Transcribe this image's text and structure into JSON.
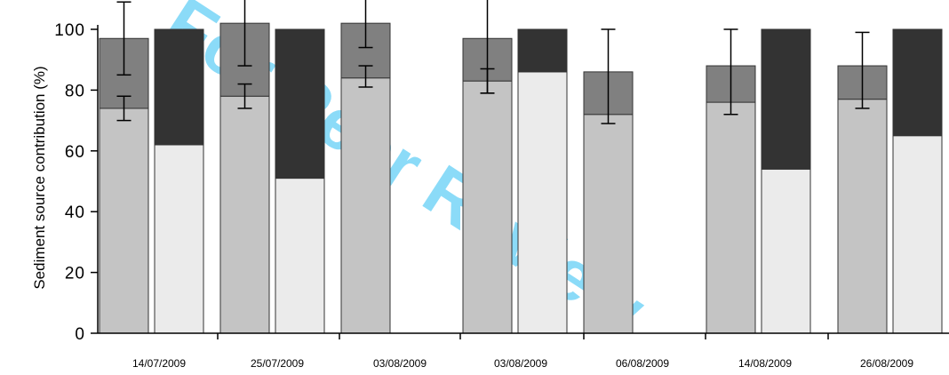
{
  "chart_data": {
    "type": "bar",
    "stacked": true,
    "ylabel": "Sediment source contribution (%)",
    "xlabel": "",
    "ylim": [
      0,
      100
    ],
    "yticks": [
      0,
      20,
      40,
      60,
      80,
      100
    ],
    "categories": [
      "14/07/2009",
      "25/07/2009",
      "03/08/2009",
      "03/08/2009",
      "06/08/2009",
      "14/08/2009",
      "26/08/2009"
    ],
    "groups": [
      {
        "category": "14/07/2009",
        "bar1": {
          "bottom": 74,
          "top": 97,
          "err_bottom": [
            70,
            78
          ],
          "err_top": [
            85,
            109
          ]
        },
        "bar2": {
          "bottom": 62,
          "top": 100
        }
      },
      {
        "category": "25/07/2009",
        "bar1": {
          "bottom": 78,
          "top": 102,
          "err_bottom": [
            74,
            82
          ],
          "err_top": [
            88,
            116
          ]
        },
        "bar2": {
          "bottom": 51,
          "top": 100
        }
      },
      {
        "category": "03/08/2009",
        "bar1": {
          "bottom": 84,
          "top": 102,
          "err_bottom": [
            81,
            88
          ],
          "err_top": [
            94,
            110
          ]
        },
        "bar2": null
      },
      {
        "category": "03/08/2009",
        "bar1": {
          "bottom": 83,
          "top": 97,
          "err_bottom": [
            79,
            87
          ],
          "err_top": [
            79,
            110
          ]
        },
        "bar2": {
          "bottom": 86,
          "top": 100
        }
      },
      {
        "category": "06/08/2009",
        "bar1": {
          "bottom": 72,
          "top": 86,
          "err_bottom": [
            69,
            100
          ],
          "err_top": null
        },
        "bar2": null
      },
      {
        "category": "14/08/2009",
        "bar1": {
          "bottom": 76,
          "top": 88,
          "err_bottom": [
            72,
            100
          ],
          "err_top": null
        },
        "bar2": {
          "bottom": 54,
          "top": 100
        }
      },
      {
        "category": "26/08/2009",
        "bar1": {
          "bottom": 77,
          "top": 88,
          "err_bottom": [
            74,
            99
          ],
          "err_top": null
        },
        "bar2": {
          "bottom": 65,
          "top": 100
        }
      }
    ],
    "colors": {
      "bar1_lower": "#c4c4c4",
      "bar1_upper": "#808080",
      "bar2_lower": "#ebebeb",
      "bar2_upper": "#333333",
      "edge": "#333333",
      "axis": "#000000"
    },
    "grid": false,
    "legend": "none"
  },
  "watermark": {
    "text": "For Peer Review",
    "color": "#00b0f0"
  }
}
